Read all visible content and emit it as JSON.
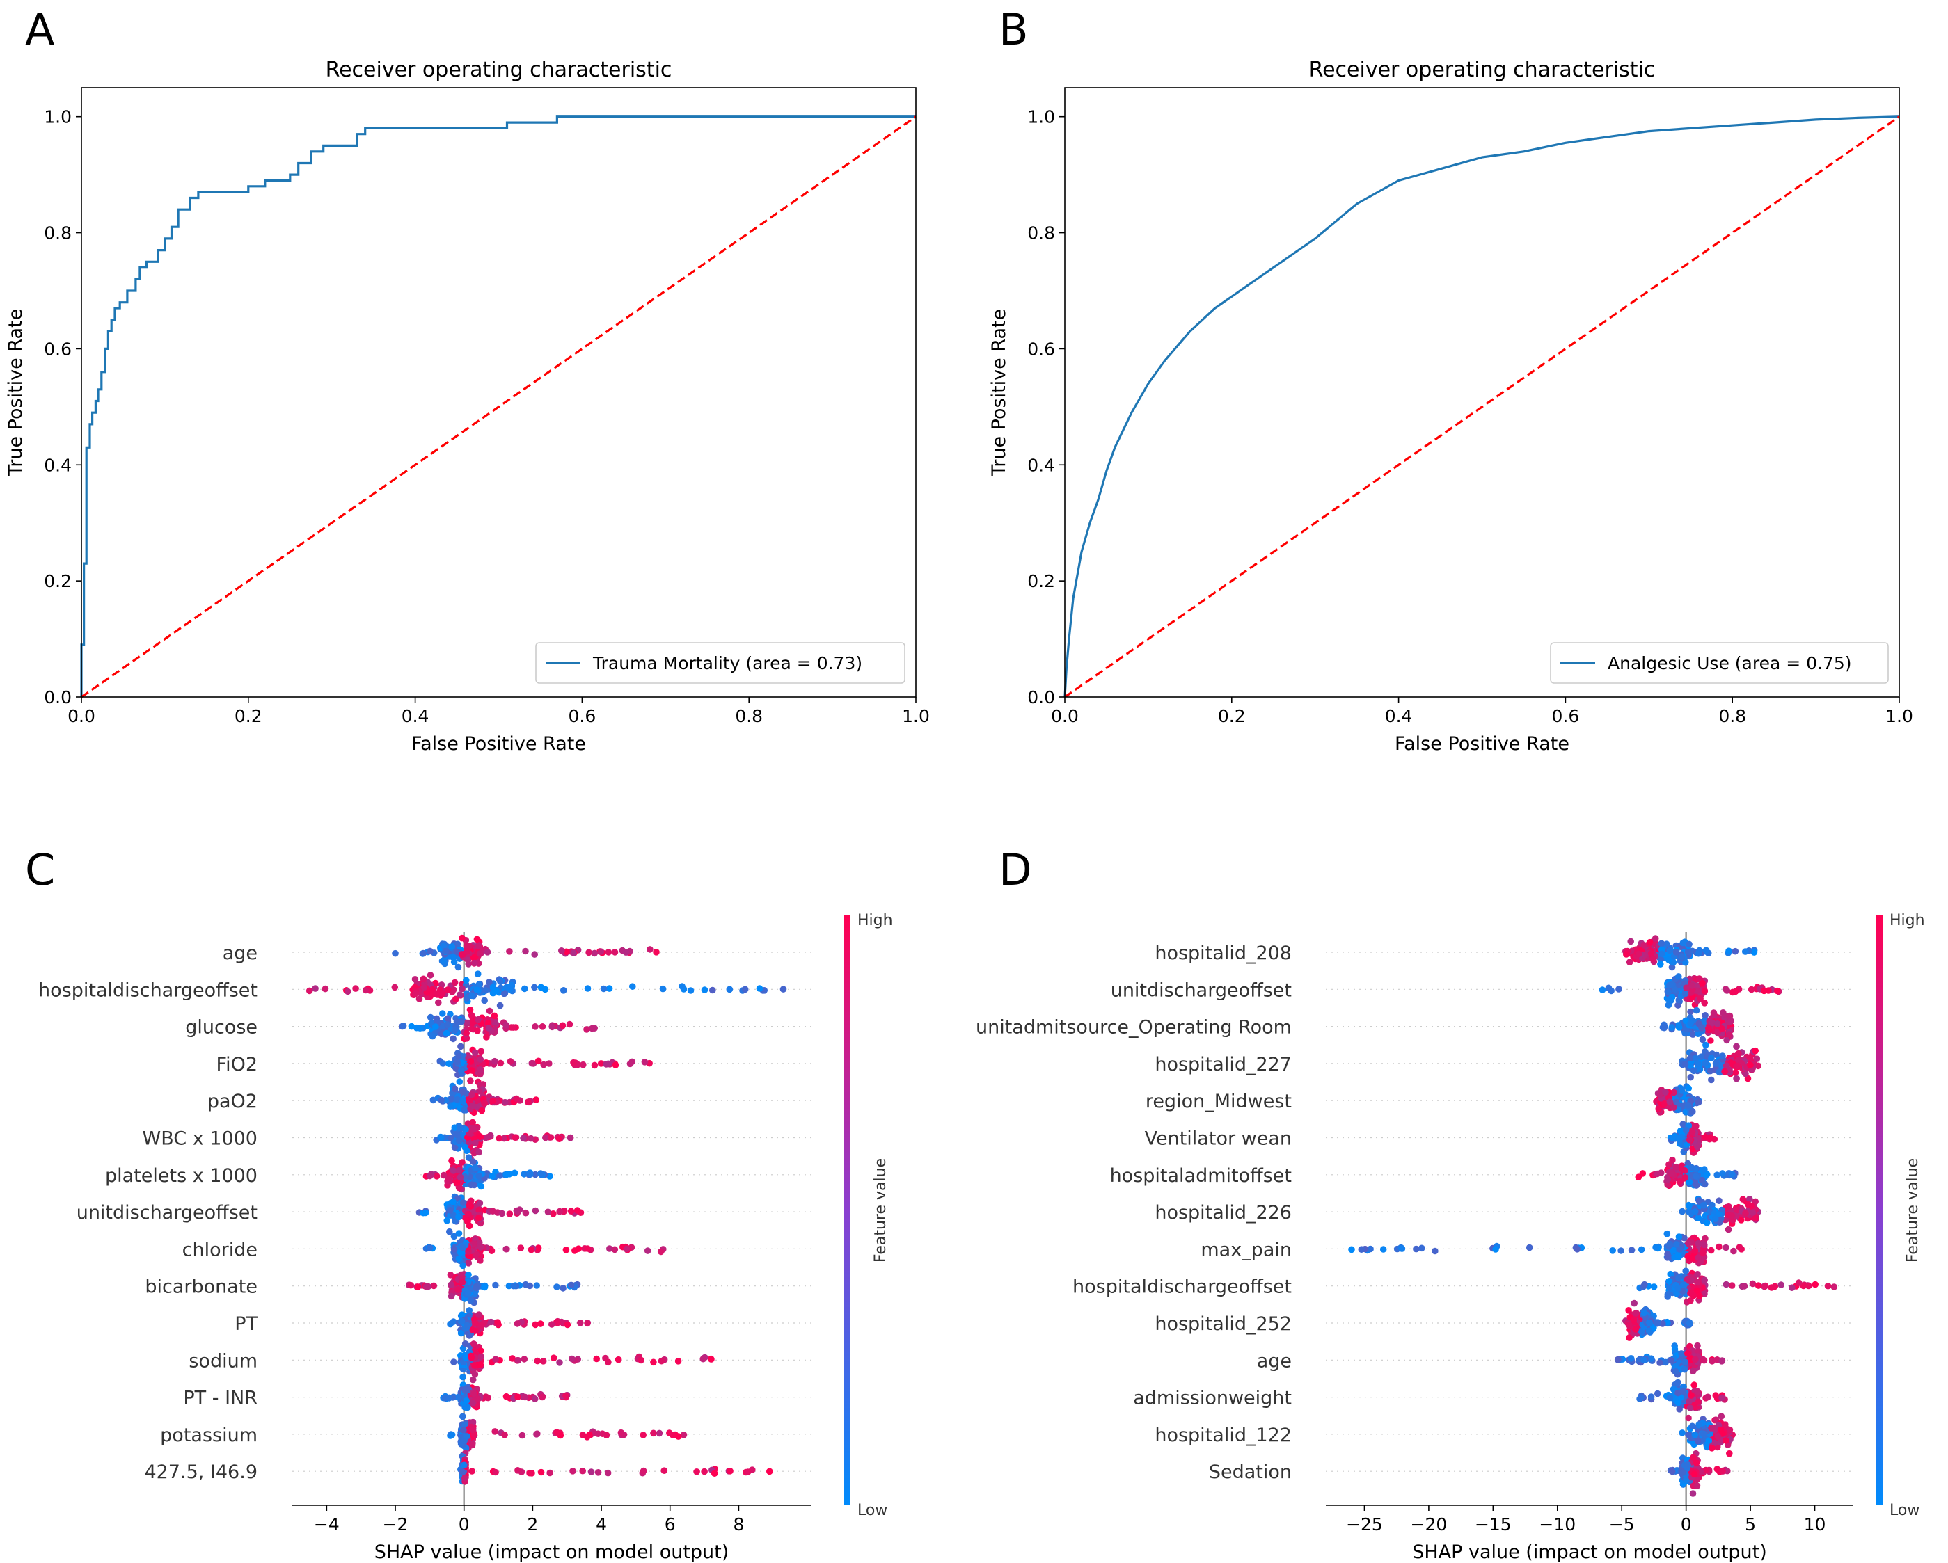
{
  "colors": {
    "roc_line": "#1f77b4",
    "chance_line": "#ff0000",
    "shap_high": "#ff0052",
    "shap_low": "#008bfb"
  },
  "panels": [
    {
      "letter": "A",
      "chart_data": {
        "type": "line",
        "title": "Receiver operating characteristic",
        "xlabel": "False Positive Rate",
        "ylabel": "True Positive Rate",
        "xlim": [
          0,
          1
        ],
        "ylim": [
          0,
          1.05
        ],
        "xticks": [
          "0.0",
          "0.2",
          "0.4",
          "0.6",
          "0.8",
          "1.0"
        ],
        "yticks": [
          "0.0",
          "0.2",
          "0.4",
          "0.6",
          "0.8",
          "1.0"
        ],
        "legend_position": "lower-right",
        "series": [
          {
            "name": "Trauma Mortality (area = 0.73)",
            "x": [
              0,
              0,
              0.003,
              0.003,
              0.006,
              0.006,
              0.01,
              0.01,
              0.013,
              0.013,
              0.017,
              0.017,
              0.02,
              0.02,
              0.024,
              0.024,
              0.028,
              0.028,
              0.032,
              0.032,
              0.036,
              0.036,
              0.04,
              0.04,
              0.046,
              0.046,
              0.055,
              0.055,
              0.065,
              0.065,
              0.07,
              0.07,
              0.078,
              0.078,
              0.092,
              0.092,
              0.1,
              0.1,
              0.108,
              0.108,
              0.116,
              0.116,
              0.13,
              0.13,
              0.14,
              0.14,
              0.2,
              0.2,
              0.22,
              0.22,
              0.25,
              0.25,
              0.26,
              0.26,
              0.275,
              0.275,
              0.29,
              0.29,
              0.33,
              0.33,
              0.34,
              0.34,
              0.38,
              0.38,
              0.51,
              0.51,
              0.57,
              0.57,
              1.0
            ],
            "y": [
              0,
              0.09,
              0.09,
              0.23,
              0.23,
              0.43,
              0.43,
              0.47,
              0.47,
              0.49,
              0.49,
              0.51,
              0.51,
              0.53,
              0.53,
              0.56,
              0.56,
              0.6,
              0.6,
              0.63,
              0.63,
              0.65,
              0.65,
              0.67,
              0.67,
              0.68,
              0.68,
              0.7,
              0.7,
              0.72,
              0.72,
              0.74,
              0.74,
              0.75,
              0.75,
              0.77,
              0.77,
              0.79,
              0.79,
              0.81,
              0.81,
              0.84,
              0.84,
              0.86,
              0.86,
              0.87,
              0.87,
              0.88,
              0.88,
              0.89,
              0.89,
              0.9,
              0.9,
              0.92,
              0.92,
              0.94,
              0.94,
              0.95,
              0.95,
              0.97,
              0.97,
              0.98,
              0.98,
              0.98,
              0.98,
              0.99,
              0.99,
              1.0,
              1.0
            ]
          },
          {
            "name": "",
            "x": [
              0,
              1
            ],
            "y": [
              0,
              1
            ],
            "style": "dashed"
          }
        ]
      }
    },
    {
      "letter": "B",
      "chart_data": {
        "type": "line",
        "title": "Receiver operating characteristic",
        "xlabel": "False Positive Rate",
        "ylabel": "True Positive Rate",
        "xlim": [
          0,
          1
        ],
        "ylim": [
          0,
          1.05
        ],
        "xticks": [
          "0.0",
          "0.2",
          "0.4",
          "0.6",
          "0.8",
          "1.0"
        ],
        "yticks": [
          "0.0",
          "0.2",
          "0.4",
          "0.6",
          "0.8",
          "1.0"
        ],
        "legend_position": "lower-right",
        "series": [
          {
            "name": "Analgesic Use (area = 0.75)",
            "x": [
              0,
              0.002,
              0.005,
              0.01,
              0.015,
              0.02,
              0.03,
              0.04,
              0.05,
              0.06,
              0.07,
              0.08,
              0.1,
              0.12,
              0.15,
              0.18,
              0.2,
              0.25,
              0.3,
              0.35,
              0.4,
              0.45,
              0.5,
              0.55,
              0.6,
              0.65,
              0.7,
              0.75,
              0.8,
              0.85,
              0.9,
              0.95,
              1.0
            ],
            "y": [
              0,
              0.05,
              0.1,
              0.17,
              0.21,
              0.25,
              0.3,
              0.34,
              0.39,
              0.43,
              0.46,
              0.49,
              0.54,
              0.58,
              0.63,
              0.67,
              0.69,
              0.74,
              0.79,
              0.85,
              0.89,
              0.91,
              0.93,
              0.94,
              0.955,
              0.965,
              0.975,
              0.98,
              0.985,
              0.99,
              0.995,
              0.998,
              1.0
            ]
          },
          {
            "name": "",
            "x": [
              0,
              1
            ],
            "y": [
              0,
              1
            ],
            "style": "dashed"
          }
        ]
      }
    },
    {
      "letter": "C",
      "chart_data": {
        "type": "scatter",
        "xlabel": "SHAP value (impact on model output)",
        "xlim": [
          -5,
          10.1
        ],
        "xticks": [
          -4,
          -2,
          0,
          2,
          4,
          6,
          8
        ],
        "xtick_labels": [
          "−4",
          "−2",
          "0",
          "2",
          "4",
          "6",
          "8"
        ],
        "colorbar": {
          "high": "High",
          "low": "Low",
          "label": "Feature value"
        },
        "features": [
          {
            "name": "age",
            "min": -2.0,
            "max": 5.6,
            "dense": [
              -0.7,
              0.5
            ],
            "high_side": "right"
          },
          {
            "name": "hospitaldischargeoffset",
            "min": -4.5,
            "max": 9.3,
            "dense": [
              -1.5,
              1.5
            ],
            "high_side": "left"
          },
          {
            "name": "glucose",
            "min": -1.8,
            "max": 3.8,
            "dense": [
              -1.0,
              1.0
            ],
            "high_side": "right"
          },
          {
            "name": "FiO2",
            "min": -0.7,
            "max": 5.4,
            "dense": [
              -0.3,
              0.5
            ],
            "high_side": "right"
          },
          {
            "name": "paO2",
            "min": -0.9,
            "max": 2.1,
            "dense": [
              -0.4,
              0.6
            ],
            "high_side": "right"
          },
          {
            "name": "WBC x 1000",
            "min": -0.8,
            "max": 3.1,
            "dense": [
              -0.3,
              0.5
            ],
            "high_side": "right"
          },
          {
            "name": "platelets x 1000",
            "min": -1.1,
            "max": 2.5,
            "dense": [
              -0.5,
              0.5
            ],
            "high_side": "left"
          },
          {
            "name": "unitdischargeoffset",
            "min": -1.3,
            "max": 3.4,
            "dense": [
              -0.5,
              0.5
            ],
            "high_side": "right"
          },
          {
            "name": "chloride",
            "min": -1.1,
            "max": 5.8,
            "dense": [
              -0.3,
              0.5
            ],
            "high_side": "right"
          },
          {
            "name": "bicarbonate",
            "min": -1.6,
            "max": 3.3,
            "dense": [
              -0.4,
              0.4
            ],
            "high_side": "left"
          },
          {
            "name": "PT",
            "min": -0.4,
            "max": 3.6,
            "dense": [
              -0.1,
              0.5
            ],
            "high_side": "right"
          },
          {
            "name": "sodium",
            "min": -0.3,
            "max": 7.2,
            "dense": [
              -0.1,
              0.5
            ],
            "high_side": "right"
          },
          {
            "name": "PT - INR",
            "min": -0.6,
            "max": 3.0,
            "dense": [
              -0.1,
              0.4
            ],
            "high_side": "right"
          },
          {
            "name": "potassium",
            "min": -0.4,
            "max": 6.4,
            "dense": [
              -0.1,
              0.3
            ],
            "high_side": "right"
          },
          {
            "name": "427.5, I46.9",
            "min": -0.1,
            "max": 8.9,
            "dense": [
              -0.05,
              0.05
            ],
            "high_side": "right"
          }
        ]
      }
    },
    {
      "letter": "D",
      "chart_data": {
        "type": "scatter",
        "xlabel": "SHAP value (impact on model output)",
        "xlim": [
          -28,
          13
        ],
        "xticks": [
          -25,
          -20,
          -15,
          -10,
          -5,
          0,
          5,
          10
        ],
        "xtick_labels": [
          "−25",
          "−20",
          "−15",
          "−10",
          "−5",
          "0",
          "5",
          "10"
        ],
        "colorbar": {
          "high": "High",
          "low": "Low",
          "label": "Feature value"
        },
        "features": [
          {
            "name": "hospitalid_208",
            "min": -4.7,
            "max": 5.3,
            "dense": [
              -4.5,
              0.3
            ],
            "high_side": "left"
          },
          {
            "name": "unitdischargeoffset",
            "min": -6.5,
            "max": 7.2,
            "dense": [
              -1.5,
              1.5
            ],
            "high_side": "right"
          },
          {
            "name": "unitadmitsource_Operating Room",
            "min": -1.8,
            "max": 3.5,
            "dense": [
              -0.3,
              3.5
            ],
            "high_side": "right"
          },
          {
            "name": "hospitalid_227",
            "min": -0.3,
            "max": 5.6,
            "dense": [
              0.2,
              5.5
            ],
            "high_side": "right"
          },
          {
            "name": "region_Midwest",
            "min": -2.3,
            "max": 1.0,
            "dense": [
              -2.2,
              0.5
            ],
            "high_side": "left"
          },
          {
            "name": "Ventilator wean",
            "min": -1.2,
            "max": 2.2,
            "dense": [
              -0.5,
              1.0
            ],
            "high_side": "right"
          },
          {
            "name": "hospitaladmitoffset",
            "min": -3.7,
            "max": 3.8,
            "dense": [
              -1.5,
              1.5
            ],
            "high_side": "left"
          },
          {
            "name": "hospitalid_226",
            "min": -0.3,
            "max": 5.6,
            "dense": [
              0.2,
              5.5
            ],
            "high_side": "right"
          },
          {
            "name": "max_pain",
            "min": -26,
            "max": 4.3,
            "dense": [
              -1.5,
              1.5
            ],
            "high_side": "right"
          },
          {
            "name": "hospitaldischargeoffset",
            "min": -3.6,
            "max": 11.5,
            "dense": [
              -1.5,
              1.5
            ],
            "high_side": "right"
          },
          {
            "name": "hospitalid_252",
            "min": -4.7,
            "max": 0.3,
            "dense": [
              -4.5,
              -2.5
            ],
            "high_side": "left"
          },
          {
            "name": "age",
            "min": -5.3,
            "max": 2.8,
            "dense": [
              -1.0,
              1.0
            ],
            "high_side": "right"
          },
          {
            "name": "admissionweight",
            "min": -3.6,
            "max": 3.0,
            "dense": [
              -1.0,
              1.0
            ],
            "high_side": "right"
          },
          {
            "name": "hospitalid_122",
            "min": -0.3,
            "max": 3.6,
            "dense": [
              0.3,
              3.5
            ],
            "high_side": "right"
          },
          {
            "name": "Sedation",
            "min": -1.2,
            "max": 3.2,
            "dense": [
              -0.3,
              1.0
            ],
            "high_side": "right"
          }
        ]
      }
    }
  ]
}
